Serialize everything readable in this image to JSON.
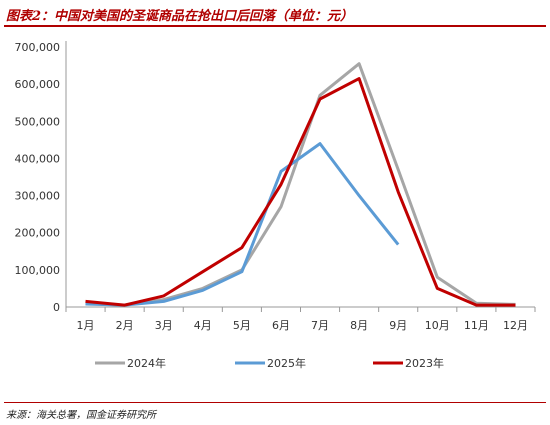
{
  "header": {
    "title": "图表2：中国对美国的圣诞商品在抢出口后回落（单位：元）"
  },
  "footer": {
    "source": "来源：海关总署，国金证券研究所"
  },
  "colors": {
    "accent": "#b00000",
    "axis": "#999999"
  },
  "chart_data": {
    "type": "line",
    "categories": [
      "1月",
      "2月",
      "3月",
      "4月",
      "5月",
      "6月",
      "7月",
      "8月",
      "9月",
      "10月",
      "11月",
      "12月"
    ],
    "y_tick_labels": [
      "0",
      "100,000",
      "200,000",
      "300,000",
      "400,000",
      "500,000",
      "600,000",
      "700,000"
    ],
    "ylim": [
      0,
      700000
    ],
    "grid": false,
    "legend_position": "bottom",
    "series": [
      {
        "name": "2024年",
        "color": "#a6a6a6",
        "values": [
          10000,
          5000,
          20000,
          50000,
          100000,
          270000,
          570000,
          655000,
          370000,
          80000,
          10000,
          7000
        ]
      },
      {
        "name": "2025年",
        "color": "#5b9bd5",
        "values": [
          8000,
          5000,
          15000,
          45000,
          95000,
          365000,
          440000,
          300000,
          168000,
          null,
          null,
          null
        ]
      },
      {
        "name": "2023年",
        "color": "#c00000",
        "values": [
          15000,
          5000,
          30000,
          95000,
          160000,
          330000,
          560000,
          615000,
          310000,
          50000,
          5000,
          5000
        ]
      }
    ]
  }
}
